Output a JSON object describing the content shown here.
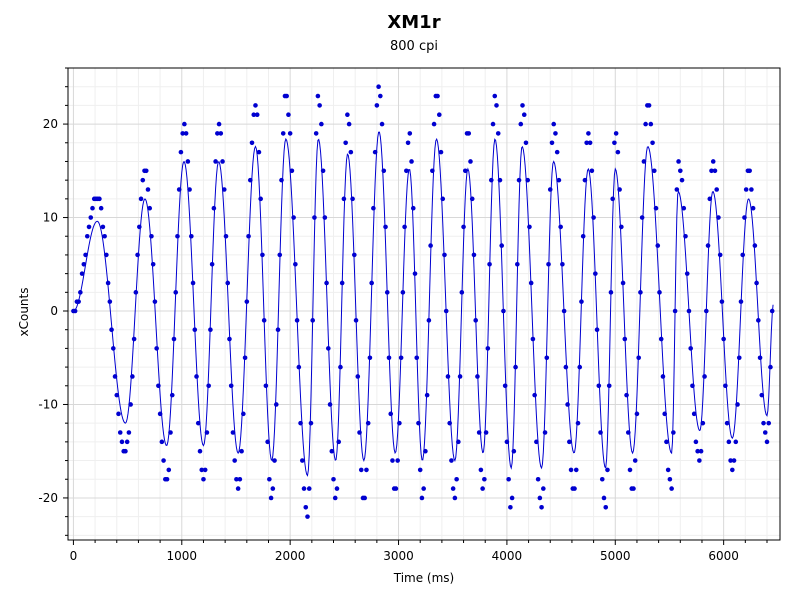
{
  "chart_data": {
    "type": "scatter",
    "title": "XM1r",
    "subtitle": "800 cpi",
    "xlabel": "Time (ms)",
    "ylabel": "xCounts",
    "xlim": [
      -50,
      6520
    ],
    "ylim": [
      -24.5,
      26
    ],
    "xticks": [
      0,
      1000,
      2000,
      3000,
      4000,
      5000,
      6000
    ],
    "yticks": [
      -20,
      -10,
      0,
      10,
      20
    ],
    "grid": true,
    "series_color": "#0000d0",
    "cycles": [
      {
        "peak_t": 220,
        "peak": 12,
        "trough_t": 480,
        "trough": -15
      },
      {
        "peak_t": 660,
        "peak": 15,
        "trough_t": 860,
        "trough": -18
      },
      {
        "peak_t": 1020,
        "peak": 20,
        "trough_t": 1200,
        "trough": -18
      },
      {
        "peak_t": 1340,
        "peak": 20,
        "trough_t": 1520,
        "trough": -19
      },
      {
        "peak_t": 1680,
        "peak": 22,
        "trough_t": 1830,
        "trough": -20
      },
      {
        "peak_t": 1960,
        "peak": 23,
        "trough_t": 2160,
        "trough": -22
      },
      {
        "peak_t": 2260,
        "peak": 23,
        "trough_t": 2420,
        "trough": -20
      },
      {
        "peak_t": 2530,
        "peak": 21,
        "trough_t": 2680,
        "trough": -20
      },
      {
        "peak_t": 2820,
        "peak": 24,
        "trough_t": 2970,
        "trough": -19
      },
      {
        "peak_t": 3100,
        "peak": 19,
        "trough_t": 3220,
        "trough": -20
      },
      {
        "peak_t": 3350,
        "peak": 23,
        "trough_t": 3520,
        "trough": -20
      },
      {
        "peak_t": 3640,
        "peak": 19,
        "trough_t": 3780,
        "trough": -19
      },
      {
        "peak_t": 3890,
        "peak": 23,
        "trough_t": 4040,
        "trough": -21
      },
      {
        "peak_t": 4140,
        "peak": 22,
        "trough_t": 4320,
        "trough": -21
      },
      {
        "peak_t": 4430,
        "peak": 20,
        "trough_t": 4620,
        "trough": -19
      },
      {
        "peak_t": 4750,
        "peak": 19,
        "trough_t": 4910,
        "trough": -21
      },
      {
        "peak_t": 5000,
        "peak": 19,
        "trough_t": 5160,
        "trough": -19
      },
      {
        "peak_t": 5300,
        "peak": 22,
        "trough_t": 5520,
        "trough": -19
      },
      {
        "peak_t": 5580,
        "peak": 16,
        "trough_t": 5780,
        "trough": -16
      },
      {
        "peak_t": 5900,
        "peak": 16,
        "trough_t": 6080,
        "trough": -17
      },
      {
        "peak_t": 6230,
        "peak": 15,
        "trough_t": 6400,
        "trough": -14
      }
    ],
    "start": {
      "t": 0,
      "v": 0
    },
    "end": {
      "t": 6460,
      "v": 1
    },
    "sample_interval_ms": 16
  }
}
